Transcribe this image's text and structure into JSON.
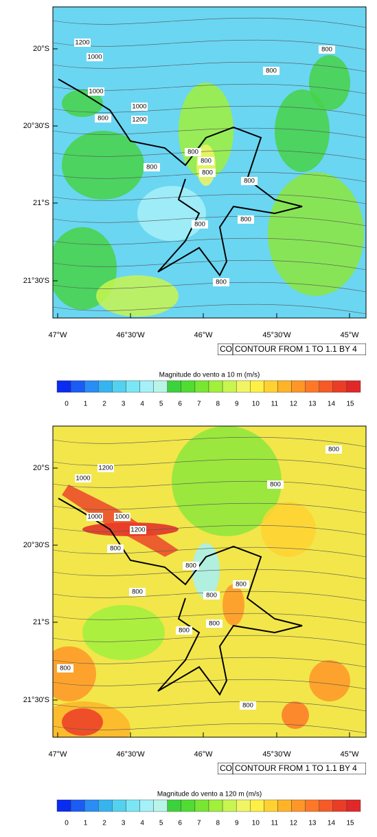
{
  "maps": [
    {
      "lat_labels": [
        "20°S",
        "20°30'S",
        "21°S",
        "21°30'S"
      ],
      "lon_labels": [
        "47°W",
        "46°30'W",
        "46°W",
        "45°30'W",
        "45°W"
      ],
      "contour_labels": [
        "1200",
        "1000",
        "800",
        "800",
        "1000",
        "1000",
        "1200",
        "800",
        "800",
        "800",
        "800",
        "800",
        "800",
        "800",
        "800",
        "800"
      ],
      "info_left": "CO",
      "info_text": "CONTOUR FROM 1 TO 1.1 BY 4",
      "colorbar": {
        "title": "Magnitude do vento a 10 m  (m/s)",
        "ticks": [
          0,
          1,
          2,
          3,
          4,
          5,
          6,
          7,
          8,
          9,
          10,
          11,
          12,
          13,
          14,
          15
        ],
        "colors": [
          "#0a2cf0",
          "#1b5cf5",
          "#2a8cf5",
          "#36b4f0",
          "#52d2f0",
          "#7ae6f5",
          "#a6f0f8",
          "#b8f5e8",
          "#3cd23c",
          "#50dc32",
          "#78e632",
          "#a0f03c",
          "#c8f550",
          "#f0f564",
          "#fff046",
          "#ffd232",
          "#ffb428",
          "#ff9628",
          "#ff7828",
          "#f55a28",
          "#eb3c28",
          "#e12828"
        ]
      }
    },
    {
      "lat_labels": [
        "20°S",
        "20°30'S",
        "21°S",
        "21°30'S"
      ],
      "lon_labels": [
        "47°W",
        "46°30'W",
        "46°W",
        "45°30'W",
        "45°W"
      ],
      "contour_labels": [
        "800",
        "1200",
        "1000",
        "800",
        "1000",
        "1000",
        "1200",
        "800",
        "800",
        "800",
        "800",
        "800",
        "800",
        "800",
        "800",
        "800"
      ],
      "info_left": "CO",
      "info_text": "CONTOUR FROM 1 TO 1.1 BY 4",
      "colorbar": {
        "title": "Magnitude do vento a 120 m  (m/s)",
        "ticks": [
          0,
          1,
          2,
          3,
          4,
          5,
          6,
          7,
          8,
          9,
          10,
          11,
          12,
          13,
          14,
          15
        ],
        "colors": [
          "#0a2cf0",
          "#1b5cf5",
          "#2a8cf5",
          "#36b4f0",
          "#52d2f0",
          "#7ae6f5",
          "#a6f0f8",
          "#b8f5e8",
          "#3cd23c",
          "#50dc32",
          "#78e632",
          "#a0f03c",
          "#c8f550",
          "#f0f564",
          "#fff046",
          "#ffd232",
          "#ffb428",
          "#ff9628",
          "#ff7828",
          "#f55a28",
          "#eb3c28",
          "#e12828"
        ]
      }
    }
  ]
}
